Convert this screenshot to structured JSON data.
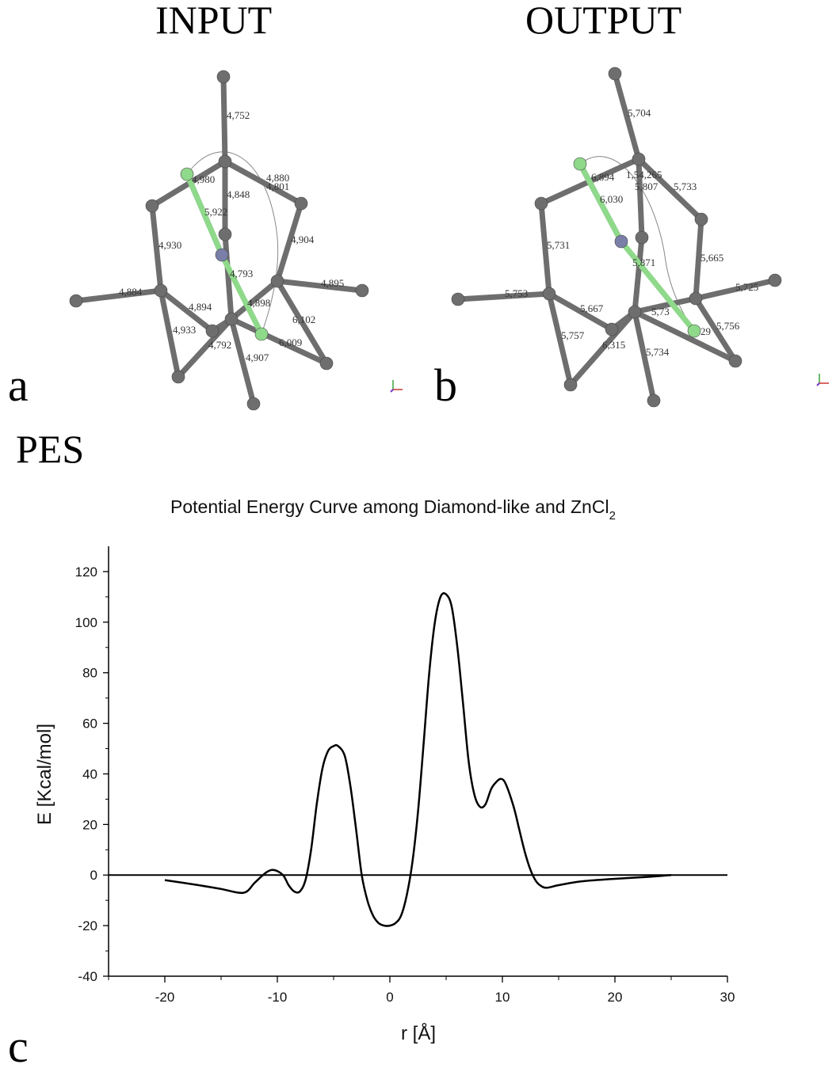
{
  "panels": {
    "a": {
      "letter": "a",
      "title": "INPUT",
      "bond_labels": [
        "4,752",
        "4,980",
        "4,880",
        "4,801",
        "4,848",
        "5,922",
        "4,904",
        "4,930",
        "4,793",
        "4,895",
        "4,884",
        "4,894",
        "4,898",
        "6,102",
        "4,933",
        "4,792",
        "6,009",
        "4,907"
      ]
    },
    "b": {
      "letter": "b",
      "title": "OUTPUT",
      "bond_labels": [
        "5,704",
        "6,894",
        "1,54,265",
        "5,807",
        "5,733",
        "6,030",
        "5,731",
        "5,871",
        "5,665",
        "5,753",
        "5,667",
        "5,725",
        "5,757",
        "6,315",
        "5,734",
        "5,756",
        "5,73",
        "29"
      ]
    },
    "c": {
      "letter": "c"
    }
  },
  "pes_label": "PES",
  "colors": {
    "carbon": "#6e6e6e",
    "chlorine": "#8fd98a",
    "zinc": "#7a7fa8",
    "bond": "#6e6e6e",
    "curve": "#000000"
  },
  "chart_data": {
    "type": "line",
    "title": "Potential Energy Curve among Diamond-like and ZnCl",
    "title_subscript": "2",
    "xlabel": "r [Å]",
    "ylabel": "E [Kcal/mol]",
    "xlim": [
      -25,
      30
    ],
    "ylim": [
      -40,
      130
    ],
    "xticks": [
      -20,
      -10,
      0,
      10,
      20,
      30
    ],
    "yticks": [
      -40,
      -20,
      0,
      20,
      40,
      60,
      80,
      100,
      120
    ],
    "zero_line": true,
    "grid": false,
    "series": [
      {
        "x": [
          -20,
          -17,
          -15,
          -13,
          -12,
          -11,
          -10.3,
          -9.5,
          -9,
          -8.5,
          -8,
          -7.5,
          -7,
          -6.5,
          -6,
          -5.5,
          -5,
          -4.6,
          -4,
          -3.5,
          -3,
          -2.5,
          -2,
          -1.5,
          -1,
          -0.5,
          0,
          0.5,
          1,
          1.5,
          2,
          2.5,
          3,
          3.5,
          4,
          4.5,
          5,
          5.5,
          6,
          6.5,
          7,
          7.5,
          8,
          8.5,
          9,
          9.5,
          9.9,
          10.3,
          11,
          11.5,
          12,
          12.5,
          13,
          13.5,
          14,
          15,
          17,
          20,
          23,
          25
        ],
        "y": [
          -2,
          -4,
          -5.5,
          -7,
          -3,
          1,
          2,
          0,
          -4,
          -6.5,
          -6.5,
          -2,
          10,
          28,
          42,
          49,
          51,
          51,
          47,
          35,
          18,
          0,
          -10,
          -16,
          -19,
          -20,
          -20,
          -19,
          -16,
          -8,
          5,
          25,
          52,
          80,
          100,
          110,
          111,
          106,
          90,
          68,
          45,
          32,
          27,
          28,
          34,
          37,
          38,
          36,
          27,
          18,
          9,
          2,
          -2.5,
          -4.5,
          -5,
          -4,
          -2.5,
          -1.5,
          -0.7,
          0
        ]
      }
    ]
  }
}
